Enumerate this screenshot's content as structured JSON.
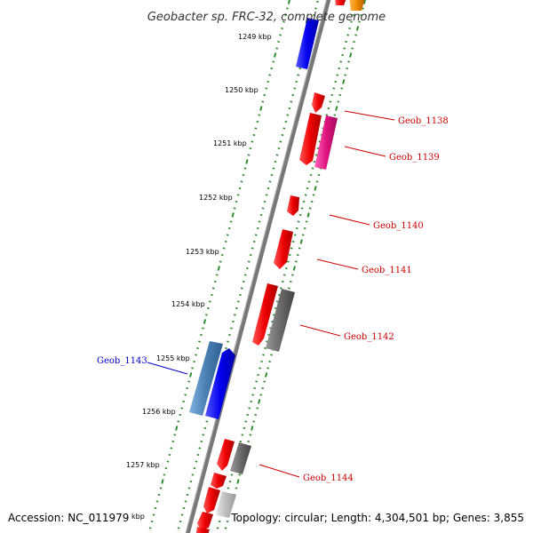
{
  "title": "Geobacter sp. FRC-32, complete genome",
  "footer": {
    "accession": "Accession: NC_011979",
    "summary": "Topology: circular; Length: 4,304,501 bp; Genes: 3,855"
  },
  "kbp_marks": [
    "1249 kbp",
    "1250 kbp",
    "1251 kbp",
    "1252 kbp",
    "1253 kbp",
    "1254 kbp",
    "1255 kbp",
    "1256 kbp",
    "1257 kbp"
  ],
  "partial_mark": "kbp",
  "gene_labels": [
    {
      "text": "Geob_1138",
      "color": "#cc0000"
    },
    {
      "text": "Geob_1139",
      "color": "#cc0000"
    },
    {
      "text": "Geob_1140",
      "color": "#cc0000"
    },
    {
      "text": "Geob_1141",
      "color": "#cc0000"
    },
    {
      "text": "Geob_1142",
      "color": "#cc0000"
    },
    {
      "text": "Geob_1143",
      "color": "#0000cc"
    },
    {
      "text": "Geob_1144",
      "color": "#cc0000"
    }
  ],
  "colors": {
    "backbone": "#777777",
    "ticks": "#2e8b2e",
    "red_gene": "#ee0000",
    "blue_gene": "#0000ee",
    "steel_gene": "#4a7fb5",
    "pink_gene": "#e0137f",
    "gray_gene": "#6a6a6a",
    "light_gene": "#bdbdbd",
    "orange_gene": "#ee8800"
  }
}
